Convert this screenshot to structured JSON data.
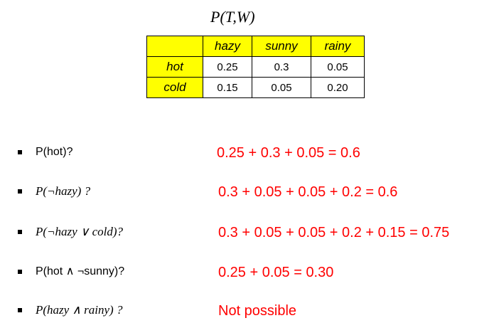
{
  "title": "P(T,W)",
  "table": {
    "columns": [
      "hazy",
      "sunny",
      "rainy"
    ],
    "rows": [
      {
        "label": "hot",
        "values": [
          "0.25",
          "0.3",
          "0.05"
        ]
      },
      {
        "label": "cold",
        "values": [
          "0.15",
          "0.05",
          "0.20"
        ]
      }
    ]
  },
  "questions": [
    {
      "question": "P(hot)?",
      "answer": "0.25 + 0.3 + 0.05 = 0.6"
    },
    {
      "question": "P(¬hazy) ?",
      "answer": "0.3 + 0.05 + 0.05 + 0.2 = 0.6"
    },
    {
      "question": "P(¬hazy ∨ cold)?",
      "answer": "0.3 + 0.05 + 0.05 + 0.2 + 0.15 = 0.75"
    },
    {
      "question": "P(hot ∧ ¬sunny)?",
      "answer": "0.25 + 0.05 = 0.30"
    },
    {
      "question": "P(hazy ∧ rainy) ?",
      "answer": "Not possible"
    }
  ]
}
